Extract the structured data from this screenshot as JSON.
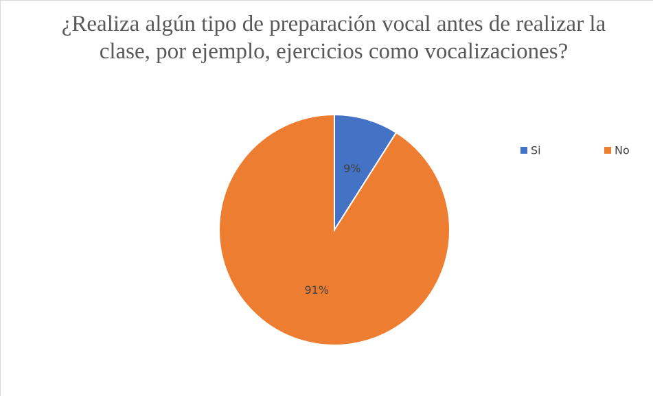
{
  "chart_data": {
    "type": "pie",
    "title": "¿Realiza algún tipo de preparación vocal antes de realizar la clase, por ejemplo, ejercicios como vocalizaciones?",
    "categories": [
      "Si",
      "No"
    ],
    "values": [
      9,
      91
    ],
    "value_labels": [
      "9%",
      "91%"
    ],
    "colors": [
      "#4472c4",
      "#ed7d31"
    ],
    "legend": "top-right"
  }
}
